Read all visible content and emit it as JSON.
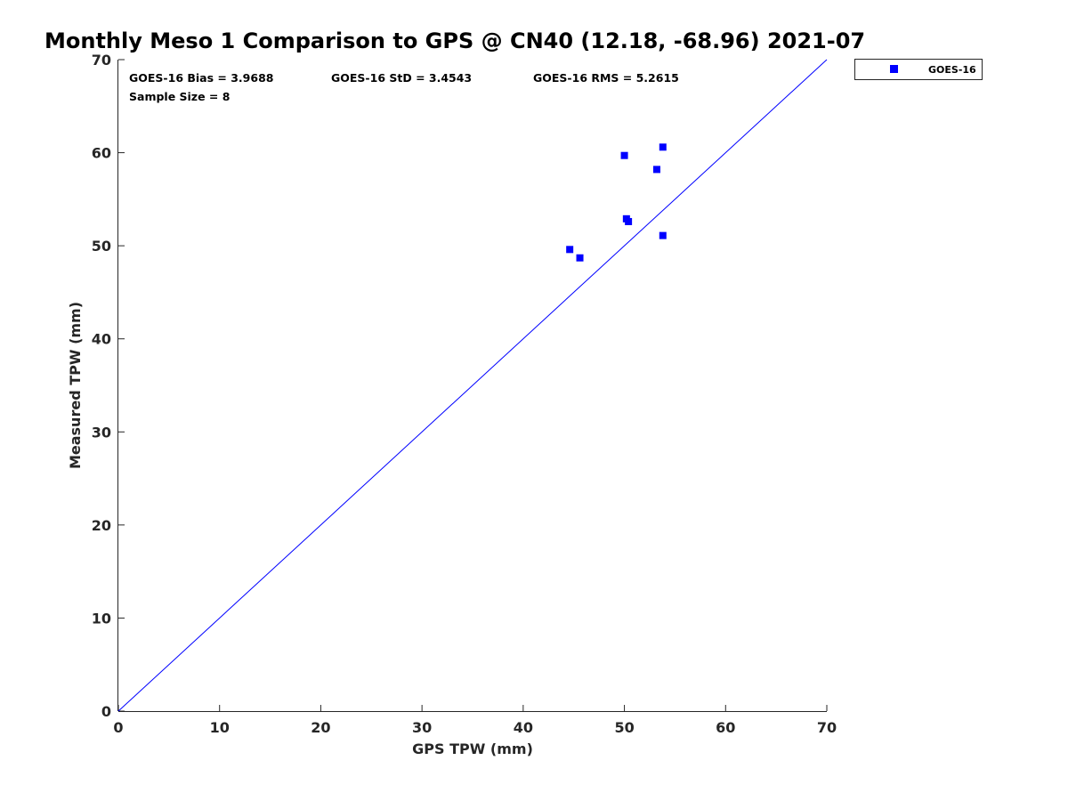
{
  "chart_data": {
    "type": "scatter",
    "title": "Monthly Meso 1 Comparison to GPS @ CN40 (12.18, -68.96) 2021-07",
    "xlabel": "GPS TPW (mm)",
    "ylabel": "Measured TPW (mm)",
    "xlim": [
      0,
      70
    ],
    "ylim": [
      0,
      70
    ],
    "xticks": [
      "0",
      "10",
      "20",
      "30",
      "40",
      "50",
      "60",
      "70"
    ],
    "yticks": [
      "0",
      "10",
      "20",
      "30",
      "40",
      "50",
      "60",
      "70"
    ],
    "grid": false,
    "legend_position": "outside-top-right",
    "reference_line": {
      "type": "one-to-one",
      "from": [
        0,
        0
      ],
      "to": [
        70,
        70
      ],
      "color": "#0000ff"
    },
    "stats": {
      "bias": "GOES-16 Bias = 3.9688",
      "std": "GOES-16 StD = 3.4543",
      "rms": "GOES-16 RMS = 5.2615",
      "sample_size": "Sample Size = 8"
    },
    "series": [
      {
        "name": "GOES-16",
        "color": "#0000ff",
        "marker": "square",
        "points": [
          {
            "x": 44.6,
            "y": 49.6
          },
          {
            "x": 45.6,
            "y": 48.7
          },
          {
            "x": 50.0,
            "y": 59.7
          },
          {
            "x": 50.2,
            "y": 52.9
          },
          {
            "x": 50.4,
            "y": 52.6
          },
          {
            "x": 53.2,
            "y": 58.2
          },
          {
            "x": 53.8,
            "y": 60.6
          },
          {
            "x": 53.8,
            "y": 51.1
          }
        ]
      }
    ]
  }
}
